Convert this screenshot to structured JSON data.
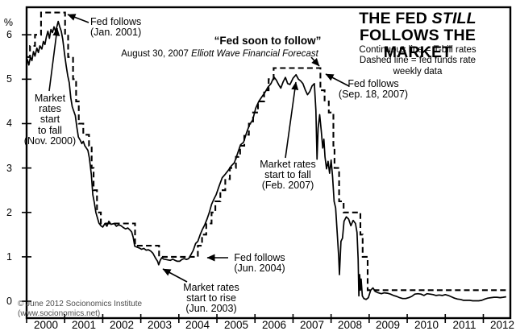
{
  "title": {
    "part1": "THE FED ",
    "italic": "STILL",
    "line2": "FOLLOWS THE MARKET"
  },
  "legend": {
    "line1": "Continuous line = T-bill rates",
    "line2": "Dashed line = fed funds rate",
    "line3": "weekly data"
  },
  "quote": {
    "text": "“Fed soon to follow”",
    "source_prefix": "August 30, 2007 ",
    "source_name": "Elliott Wave Financial Forecast"
  },
  "annotations": {
    "fed_follows_jan2001": "Fed follows\n(Jan. 2001)",
    "market_fall_nov2000": "Market\nrates\nstart\nto fall\n(Nov. 2000)",
    "fed_follows_sep2007": "Fed follows\n(Sep. 18, 2007)",
    "market_fall_feb2007": "Market rates\nstart to fall\n(Feb. 2007)",
    "fed_follows_jun2004": "Fed follows\n(Jun. 2004)",
    "market_rise_jun2003": "Market rates\nstart to rise\n(Jun. 2003)"
  },
  "copyright": "© June 2012 Socionomics Institute\n(www.socionomics.net)",
  "chart_data": {
    "type": "line",
    "title": "THE FED STILL FOLLOWS THE MARKET",
    "subtitle": "Continuous line = T-bill rates; Dashed line = fed funds rate; weekly data",
    "grid": false,
    "x_axis": {
      "range": [
        2000,
        2012.71
      ],
      "ticks": [
        2000,
        2001,
        2002,
        2003,
        2004,
        2005,
        2006,
        2007,
        2008,
        2009,
        2010,
        2011,
        2012
      ],
      "labels": [
        "2000",
        "2001",
        "2002",
        "2003",
        "2004",
        "2005",
        "2006",
        "2007",
        "2008",
        "2009",
        "2010",
        "2011",
        "2012"
      ]
    },
    "y_axis": {
      "unit": "%",
      "range": [
        -0.38,
        6.62
      ],
      "ticks": [
        0,
        1,
        2,
        3,
        4,
        5,
        6
      ]
    },
    "series": [
      {
        "name": "T-bill rates",
        "line": "solid",
        "points": [
          [
            2000.02,
            5.45
          ],
          [
            2000.06,
            5.32
          ],
          [
            2000.1,
            5.5
          ],
          [
            2000.14,
            5.42
          ],
          [
            2000.18,
            5.62
          ],
          [
            2000.22,
            5.52
          ],
          [
            2000.27,
            5.7
          ],
          [
            2000.31,
            5.6
          ],
          [
            2000.35,
            5.75
          ],
          [
            2000.4,
            5.68
          ],
          [
            2000.44,
            5.85
          ],
          [
            2000.48,
            5.78
          ],
          [
            2000.52,
            5.95
          ],
          [
            2000.56,
            6.08
          ],
          [
            2000.6,
            5.92
          ],
          [
            2000.64,
            6.12
          ],
          [
            2000.68,
            6.05
          ],
          [
            2000.72,
            6.18
          ],
          [
            2000.76,
            6.08
          ],
          [
            2000.8,
            6.2
          ],
          [
            2000.83,
            6.3
          ],
          [
            2000.87,
            6.18
          ],
          [
            2000.91,
            6.08
          ],
          [
            2000.95,
            5.9
          ],
          [
            2001.0,
            5.55
          ],
          [
            2001.04,
            5.3
          ],
          [
            2001.08,
            5.08
          ],
          [
            2001.12,
            4.92
          ],
          [
            2001.16,
            4.58
          ],
          [
            2001.2,
            4.38
          ],
          [
            2001.24,
            4.28
          ],
          [
            2001.28,
            4.18
          ],
          [
            2001.32,
            3.92
          ],
          [
            2001.36,
            3.7
          ],
          [
            2001.41,
            3.62
          ],
          [
            2001.45,
            3.55
          ],
          [
            2001.49,
            3.6
          ],
          [
            2001.53,
            3.5
          ],
          [
            2001.57,
            3.45
          ],
          [
            2001.61,
            3.4
          ],
          [
            2001.65,
            3.22
          ],
          [
            2001.7,
            2.85
          ],
          [
            2001.74,
            2.4
          ],
          [
            2001.78,
            2.22
          ],
          [
            2001.82,
            2.0
          ],
          [
            2001.86,
            1.88
          ],
          [
            2001.9,
            1.76
          ],
          [
            2001.95,
            1.7
          ],
          [
            2002.0,
            1.67
          ],
          [
            2002.06,
            1.75
          ],
          [
            2002.11,
            1.69
          ],
          [
            2002.16,
            1.8
          ],
          [
            2002.22,
            1.73
          ],
          [
            2002.3,
            1.75
          ],
          [
            2002.36,
            1.69
          ],
          [
            2002.42,
            1.72
          ],
          [
            2002.48,
            1.7
          ],
          [
            2002.54,
            1.66
          ],
          [
            2002.6,
            1.63
          ],
          [
            2002.66,
            1.65
          ],
          [
            2002.72,
            1.6
          ],
          [
            2002.76,
            1.56
          ],
          [
            2002.8,
            1.44
          ],
          [
            2002.84,
            1.24
          ],
          [
            2002.9,
            1.22
          ],
          [
            2002.96,
            1.2
          ],
          [
            2003.02,
            1.17
          ],
          [
            2003.08,
            1.19
          ],
          [
            2003.14,
            1.15
          ],
          [
            2003.2,
            1.16
          ],
          [
            2003.26,
            1.13
          ],
          [
            2003.32,
            1.08
          ],
          [
            2003.38,
            0.98
          ],
          [
            2003.44,
            0.9
          ],
          [
            2003.47,
            0.82
          ],
          [
            2003.51,
            0.92
          ],
          [
            2003.55,
            0.98
          ],
          [
            2003.6,
            0.95
          ],
          [
            2003.66,
            0.94
          ],
          [
            2003.72,
            0.93
          ],
          [
            2003.78,
            0.92
          ],
          [
            2003.84,
            0.95
          ],
          [
            2003.9,
            0.92
          ],
          [
            2003.96,
            0.9
          ],
          [
            2004.02,
            0.9
          ],
          [
            2004.08,
            0.94
          ],
          [
            2004.14,
            0.96
          ],
          [
            2004.2,
            0.94
          ],
          [
            2004.26,
            0.96
          ],
          [
            2004.32,
            1.05
          ],
          [
            2004.38,
            1.15
          ],
          [
            2004.44,
            1.3
          ],
          [
            2004.5,
            1.35
          ],
          [
            2004.56,
            1.5
          ],
          [
            2004.62,
            1.62
          ],
          [
            2004.68,
            1.72
          ],
          [
            2004.74,
            1.85
          ],
          [
            2004.8,
            2.0
          ],
          [
            2004.86,
            2.18
          ],
          [
            2004.92,
            2.3
          ],
          [
            2004.98,
            2.4
          ],
          [
            2005.06,
            2.6
          ],
          [
            2005.14,
            2.78
          ],
          [
            2005.22,
            2.86
          ],
          [
            2005.3,
            2.95
          ],
          [
            2005.38,
            3.05
          ],
          [
            2005.46,
            3.12
          ],
          [
            2005.54,
            3.32
          ],
          [
            2005.62,
            3.52
          ],
          [
            2005.7,
            3.58
          ],
          [
            2005.78,
            3.8
          ],
          [
            2005.86,
            3.98
          ],
          [
            2005.94,
            4.08
          ],
          [
            2006.02,
            4.35
          ],
          [
            2006.1,
            4.5
          ],
          [
            2006.18,
            4.6
          ],
          [
            2006.26,
            4.7
          ],
          [
            2006.34,
            4.82
          ],
          [
            2006.42,
            4.9
          ],
          [
            2006.5,
            5.05
          ],
          [
            2006.56,
            4.98
          ],
          [
            2006.62,
            4.88
          ],
          [
            2006.68,
            4.8
          ],
          [
            2006.74,
            4.94
          ],
          [
            2006.8,
            5.04
          ],
          [
            2006.86,
            4.9
          ],
          [
            2006.92,
            4.88
          ],
          [
            2007.0,
            5.02
          ],
          [
            2007.08,
            5.1
          ],
          [
            2007.14,
            5.0
          ],
          [
            2007.2,
            4.96
          ],
          [
            2007.26,
            4.9
          ],
          [
            2007.32,
            4.76
          ],
          [
            2007.38,
            4.65
          ],
          [
            2007.44,
            4.72
          ],
          [
            2007.5,
            4.85
          ],
          [
            2007.56,
            4.9
          ],
          [
            2007.6,
            4.3
          ],
          [
            2007.63,
            3.2
          ],
          [
            2007.66,
            3.9
          ],
          [
            2007.7,
            4.2
          ],
          [
            2007.74,
            3.85
          ],
          [
            2007.78,
            3.45
          ],
          [
            2007.81,
            3.65
          ],
          [
            2007.84,
            3.25
          ],
          [
            2007.88,
            2.98
          ],
          [
            2007.92,
            3.15
          ],
          [
            2007.96,
            2.88
          ],
          [
            2008.0,
            3.18
          ],
          [
            2008.04,
            2.8
          ],
          [
            2008.08,
            2.25
          ],
          [
            2008.12,
            2.1
          ],
          [
            2008.16,
            1.55
          ],
          [
            2008.2,
            1.0
          ],
          [
            2008.22,
            0.6
          ],
          [
            2008.26,
            1.35
          ],
          [
            2008.3,
            1.42
          ],
          [
            2008.34,
            1.8
          ],
          [
            2008.4,
            1.9
          ],
          [
            2008.46,
            1.85
          ],
          [
            2008.52,
            1.7
          ],
          [
            2008.58,
            1.82
          ],
          [
            2008.64,
            1.75
          ],
          [
            2008.68,
            1.55
          ],
          [
            2008.71,
            0.95
          ],
          [
            2008.73,
            0.12
          ],
          [
            2008.75,
            0.6
          ],
          [
            2008.77,
            0.25
          ],
          [
            2008.79,
            0.5
          ],
          [
            2008.82,
            0.12
          ],
          [
            2008.86,
            0.06
          ],
          [
            2008.92,
            0.04
          ],
          [
            2008.98,
            0.08
          ],
          [
            2009.04,
            0.25
          ],
          [
            2009.1,
            0.3
          ],
          [
            2009.16,
            0.22
          ],
          [
            2009.24,
            0.19
          ],
          [
            2009.32,
            0.17
          ],
          [
            2009.4,
            0.19
          ],
          [
            2009.48,
            0.18
          ],
          [
            2009.56,
            0.16
          ],
          [
            2009.64,
            0.13
          ],
          [
            2009.72,
            0.11
          ],
          [
            2009.8,
            0.08
          ],
          [
            2009.88,
            0.06
          ],
          [
            2009.96,
            0.06
          ],
          [
            2010.04,
            0.08
          ],
          [
            2010.12,
            0.11
          ],
          [
            2010.2,
            0.16
          ],
          [
            2010.28,
            0.17
          ],
          [
            2010.36,
            0.16
          ],
          [
            2010.44,
            0.13
          ],
          [
            2010.52,
            0.17
          ],
          [
            2010.6,
            0.16
          ],
          [
            2010.68,
            0.15
          ],
          [
            2010.76,
            0.13
          ],
          [
            2010.84,
            0.14
          ],
          [
            2010.92,
            0.13
          ],
          [
            2011.0,
            0.15
          ],
          [
            2011.08,
            0.13
          ],
          [
            2011.16,
            0.1
          ],
          [
            2011.24,
            0.07
          ],
          [
            2011.32,
            0.05
          ],
          [
            2011.4,
            0.04
          ],
          [
            2011.48,
            0.02
          ],
          [
            2011.56,
            0.02
          ],
          [
            2011.64,
            0.02
          ],
          [
            2011.72,
            0.01
          ],
          [
            2011.8,
            0.01
          ],
          [
            2011.88,
            0.01
          ],
          [
            2011.96,
            0.02
          ],
          [
            2012.04,
            0.05
          ],
          [
            2012.12,
            0.07
          ],
          [
            2012.2,
            0.08
          ],
          [
            2012.28,
            0.09
          ],
          [
            2012.36,
            0.09
          ],
          [
            2012.44,
            0.08
          ],
          [
            2012.52,
            0.09
          ],
          [
            2012.6,
            0.1
          ]
        ]
      },
      {
        "name": "Fed funds rate",
        "line": "dashed",
        "render": "step",
        "end_t": 2012.66,
        "points": [
          [
            2000.0,
            5.5
          ],
          [
            2000.09,
            5.75
          ],
          [
            2000.22,
            6.0
          ],
          [
            2000.38,
            6.5
          ],
          [
            2001.01,
            6.0
          ],
          [
            2001.09,
            5.5
          ],
          [
            2001.22,
            5.0
          ],
          [
            2001.3,
            4.5
          ],
          [
            2001.37,
            4.0
          ],
          [
            2001.49,
            3.75
          ],
          [
            2001.64,
            3.5
          ],
          [
            2001.71,
            3.0
          ],
          [
            2001.76,
            2.5
          ],
          [
            2001.85,
            2.0
          ],
          [
            2001.95,
            1.75
          ],
          [
            2002.85,
            1.25
          ],
          [
            2003.48,
            1.0
          ],
          [
            2004.5,
            1.25
          ],
          [
            2004.61,
            1.5
          ],
          [
            2004.72,
            1.75
          ],
          [
            2004.86,
            2.0
          ],
          [
            2004.96,
            2.25
          ],
          [
            2005.09,
            2.5
          ],
          [
            2005.22,
            2.75
          ],
          [
            2005.34,
            3.0
          ],
          [
            2005.5,
            3.25
          ],
          [
            2005.61,
            3.5
          ],
          [
            2005.72,
            3.75
          ],
          [
            2005.84,
            4.0
          ],
          [
            2005.95,
            4.25
          ],
          [
            2006.08,
            4.5
          ],
          [
            2006.24,
            4.75
          ],
          [
            2006.36,
            5.0
          ],
          [
            2006.49,
            5.25
          ],
          [
            2007.72,
            4.75
          ],
          [
            2007.83,
            4.5
          ],
          [
            2007.94,
            4.25
          ],
          [
            2008.06,
            3.5
          ],
          [
            2008.09,
            3.0
          ],
          [
            2008.21,
            2.25
          ],
          [
            2008.33,
            2.0
          ],
          [
            2008.77,
            1.5
          ],
          [
            2008.83,
            1.0
          ],
          [
            2008.96,
            0.25
          ]
        ]
      }
    ]
  }
}
